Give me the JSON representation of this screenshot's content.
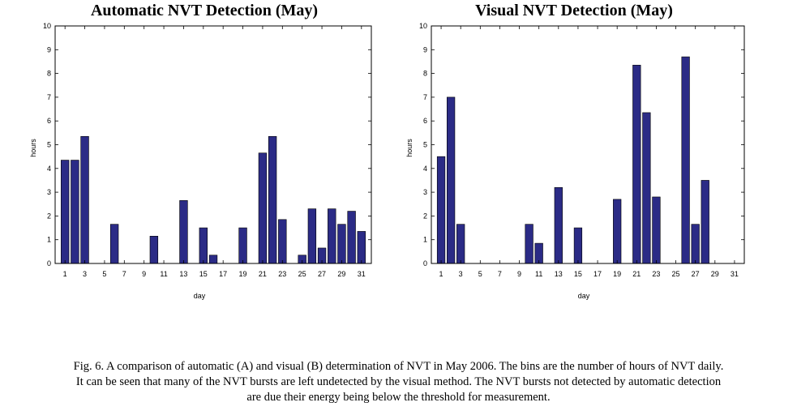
{
  "figure": {
    "caption_lines": [
      "Fig. 6. A comparison of automatic (A) and visual (B) determination of NVT in May 2006. The bins are the number of hours of NVT daily.",
      "It can be seen that many of the NVT bursts are left undetected by the visual method. The NVT bursts not detected by automatic detection",
      "are due their energy being below the threshold for measurement."
    ]
  },
  "chart_data": [
    {
      "type": "bar",
      "title": "Automatic NVT Detection (May)",
      "xlabel": "day",
      "ylabel": "hours",
      "color": "#2b2b86",
      "xlim": [
        0,
        32
      ],
      "ylim": [
        0,
        10
      ],
      "yticks": [
        0,
        1,
        2,
        3,
        4,
        5,
        6,
        7,
        8,
        9,
        10
      ],
      "xticks": [
        1,
        3,
        5,
        7,
        9,
        11,
        13,
        15,
        17,
        19,
        21,
        23,
        25,
        27,
        29,
        31
      ],
      "xtick_labels": [
        "1",
        "3",
        "5",
        "7",
        "9",
        "11",
        "13",
        "15",
        "17",
        "19",
        "21",
        "23",
        "25",
        "27",
        "29",
        "31"
      ],
      "x": [
        1,
        2,
        3,
        4,
        5,
        6,
        7,
        8,
        9,
        10,
        11,
        12,
        13,
        14,
        15,
        16,
        17,
        18,
        19,
        20,
        21,
        22,
        23,
        24,
        25,
        26,
        27,
        28,
        29,
        30,
        31
      ],
      "values": [
        4.35,
        4.35,
        5.35,
        0,
        0,
        1.65,
        0,
        0,
        0,
        1.15,
        0,
        0,
        2.65,
        0,
        1.5,
        0.35,
        0,
        0,
        1.5,
        0,
        4.65,
        5.35,
        1.85,
        0,
        0.35,
        2.3,
        0.65,
        2.3,
        1.65,
        2.2,
        1.35
      ]
    },
    {
      "type": "bar",
      "title": "Visual NVT Detection (May)",
      "xlabel": "day",
      "ylabel": "hours",
      "color": "#2b2b86",
      "xlim": [
        0,
        32
      ],
      "ylim": [
        0,
        10
      ],
      "yticks": [
        0,
        1,
        2,
        3,
        4,
        5,
        6,
        7,
        8,
        9,
        10
      ],
      "xticks": [
        1,
        3,
        5,
        7,
        9,
        11,
        13,
        15,
        17,
        19,
        21,
        23,
        25,
        27,
        29,
        31
      ],
      "xtick_labels": [
        "1",
        "3",
        "5",
        "7",
        "9",
        "11",
        "13",
        "15",
        "17",
        "19",
        "21",
        "23",
        "25",
        "27",
        "29",
        "31"
      ],
      "x": [
        1,
        2,
        3,
        4,
        5,
        6,
        7,
        8,
        9,
        10,
        11,
        12,
        13,
        14,
        15,
        16,
        17,
        18,
        19,
        20,
        21,
        22,
        23,
        24,
        25,
        26,
        27,
        28,
        29,
        30,
        31
      ],
      "values": [
        4.5,
        7.0,
        1.65,
        0,
        0,
        0,
        0,
        0,
        0,
        1.65,
        0.85,
        0,
        3.2,
        0,
        1.5,
        0,
        0,
        0,
        2.7,
        0,
        8.35,
        6.35,
        2.8,
        0,
        0,
        8.7,
        1.65,
        3.5,
        0,
        0,
        0
      ]
    }
  ]
}
